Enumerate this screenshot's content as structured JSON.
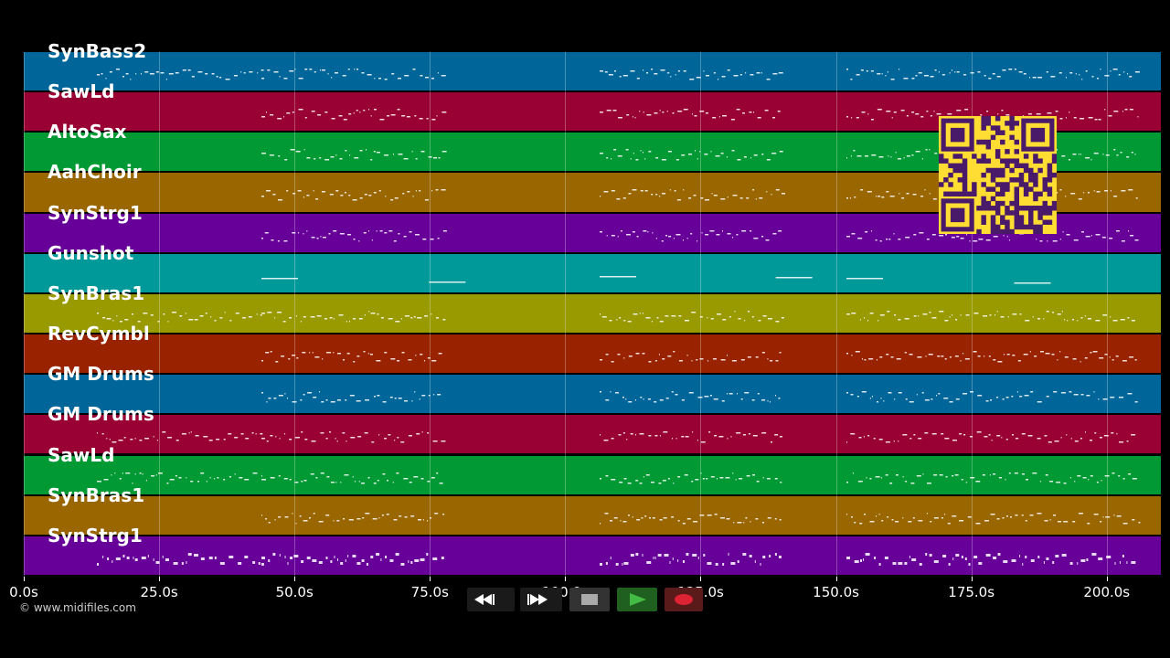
{
  "tracks": [
    {
      "name": "SynBass2",
      "color": "#006699"
    },
    {
      "name": "SawLd",
      "color": "#990033"
    },
    {
      "name": "AltoSax",
      "color": "#009933"
    },
    {
      "name": "AahChoir",
      "color": "#996600"
    },
    {
      "name": "SynStrg1",
      "color": "#660099"
    },
    {
      "name": "Gunshot",
      "color": "#009999"
    },
    {
      "name": "SynBras1",
      "color": "#999900"
    },
    {
      "name": "RevCymbl",
      "color": "#992200"
    },
    {
      "name": "GM Drums",
      "color": "#006699"
    },
    {
      "name": "GM Drums",
      "color": "#990033"
    },
    {
      "name": "SawLd",
      "color": "#009933"
    },
    {
      "name": "SynBras1",
      "color": "#996600"
    },
    {
      "name": "SynStrg1",
      "color": "#660099"
    }
  ],
  "time_axis": {
    "ticks": [
      "0.0s",
      "25.0s",
      "50.0s",
      "75.0s",
      "100.0s",
      "125.0s",
      "150.0s",
      "175.0s",
      "200.0s"
    ],
    "max_seconds": 210
  },
  "credit": "© www.midifiles.com",
  "transport": {
    "rewind_icon": "rewind-icon",
    "fastforward_icon": "fast-forward-icon",
    "stop_icon": "stop-icon",
    "play_icon": "play-icon",
    "record_icon": "record-icon",
    "play_color": "#33aa33",
    "record_color": "#dd2233"
  },
  "qr_code": {
    "color": "#ffdd33",
    "icon": "qr-code-icon"
  }
}
